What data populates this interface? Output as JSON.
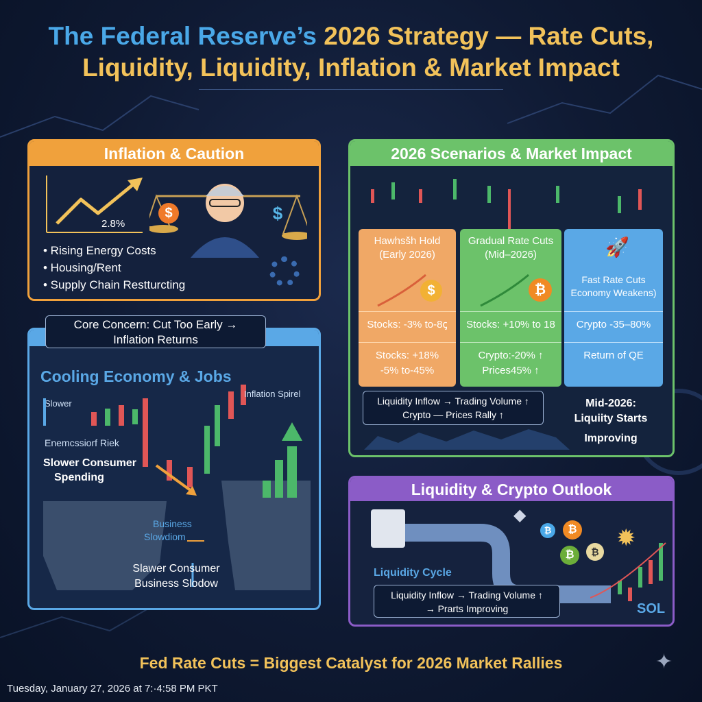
{
  "header": {
    "title_part1": "The Federal Reserve’s ",
    "title_part2": "2026 Strategy — Rate Cuts,",
    "title_line2": "Liquidity, Liquidity, Inflation & Market Impact"
  },
  "inflation": {
    "title": "Inflation & Caution",
    "rate_label": "2.8%",
    "bullets": [
      "• Rising Energy Costs",
      "• Housing/Rent",
      "• Supply Chain Restturcting"
    ]
  },
  "concern": {
    "line1": "Core Concern: Cut Too Early →",
    "line2": "Inflation Returns"
  },
  "cooling": {
    "title": "Cooling Economy & Jobs",
    "slower": "Slower",
    "recession": "Enemcssiorf Riek",
    "consumer_line1": "Slower Consumer",
    "consumer_line2": "Spending",
    "inflation_spiral": "Inflation Spirel",
    "business_line1": "Business",
    "business_line2": "Slowdiom",
    "bottom_line1": "Slawer Consumer",
    "bottom_line2": "Business Slodow"
  },
  "scenarios": {
    "title": "2026 Scenarios & Market Impact",
    "col1": {
      "title1": "Hawhsšh Hold",
      "title2": "(Early 2026)",
      "row1": "Stocks: -3% to-8ꞔ",
      "row2a": "Stocks: +18%",
      "row2b": "-5% to-45%"
    },
    "col2": {
      "title1": "Gradual Rate Cuts",
      "title2": "(Mid–2026)",
      "row1": "Stocks: +10% to 18",
      "row2a": "Crypto:-20%   ↑",
      "row2b": "Prices45% ↑"
    },
    "col3": {
      "title1": "Fast Rate Cuts",
      "title2": "Economy Weakens)",
      "row1": "Crypto -35–80%",
      "row2": "Return of QE"
    },
    "liquidity_line1": "Liquidity Inflow → Trading Volume ↑",
    "liquidity_line2": "Crypto — Prices Rally ↑",
    "mid_line1": "Mid-2026:",
    "mid_line2": "Liquiity Starts",
    "mid_line3": "Improving"
  },
  "outlook": {
    "title": "Liquidity & Crypto Outlook",
    "cycle_label": "Liquidity Cycle",
    "box_line1": "Liquidity Inflow → Trading Volume ↑",
    "box_line2": "→ Prarts Improving",
    "sol_label": "SOL"
  },
  "footer": "Fed Rate Cuts = Biggest Catalyst for 2026 Market Rallies",
  "timestamp": "Tuesday, January 27, 2026 at 7:·4:58 PM PKT",
  "icons": [
    "dollar-icon",
    "bitcoin-icon",
    "rocket-icon",
    "ethereum-icon",
    "bank-icon",
    "gear-icon",
    "sparkle-icon"
  ],
  "colors": {
    "orange": "#f0a13c",
    "green": "#6cc26a",
    "blue": "#5aa8e6",
    "purple": "#8b5cc7",
    "gold": "#f2c25a"
  }
}
